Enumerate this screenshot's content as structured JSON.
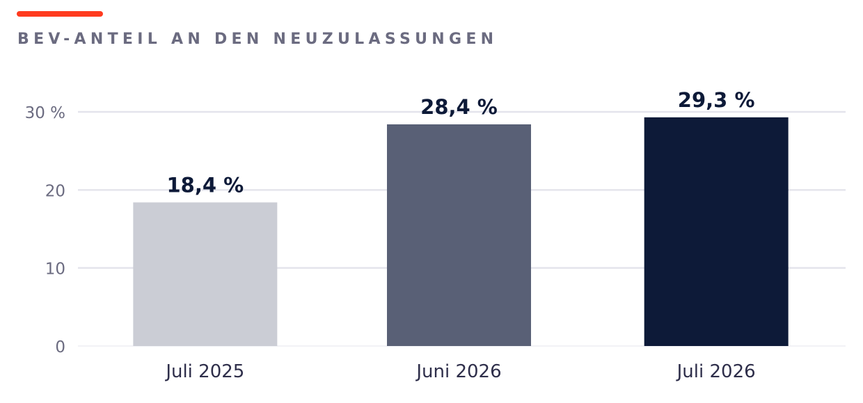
{
  "title": "BEV-ANTEIL AN DEN NEUZULASSUNGEN",
  "colors": {
    "accent": "#ff3b1f",
    "title": "#6b6b80",
    "grid": "#e4e4ec",
    "tick": "#6b6b80",
    "category": "#2e2e4a",
    "value": "#0d1a38",
    "bars": [
      "#cbcdd5",
      "#596076",
      "#0d1a38"
    ]
  },
  "chart_data": {
    "type": "bar",
    "title": "BEV-ANTEIL AN DEN NEUZULASSUNGEN",
    "xlabel": "",
    "ylabel": "",
    "categories": [
      "Juli 2025",
      "Juni 2026",
      "Juli 2026"
    ],
    "values": [
      18.4,
      28.4,
      29.3
    ],
    "value_labels": [
      "18,4 %",
      "28,4 %",
      "29,3 %"
    ],
    "ylim": [
      0,
      30
    ],
    "yticks": [
      0,
      10,
      20,
      30
    ],
    "ytick_labels": [
      "0",
      "10",
      "20",
      "30 %"
    ],
    "grid": true,
    "legend": false
  }
}
